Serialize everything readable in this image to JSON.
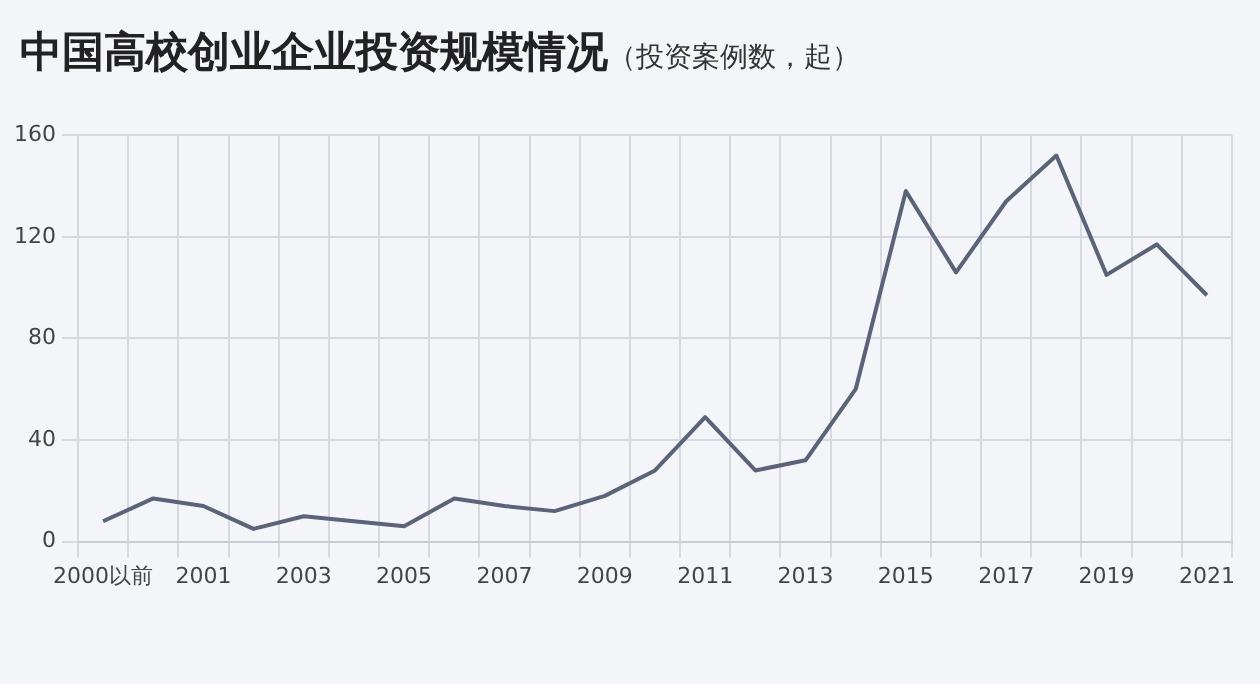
{
  "chart_data": {
    "type": "line",
    "title": "中国高校创业企业投资规模情况",
    "subtitle": "（投资案例数，起）",
    "categories": [
      "2000以前",
      null,
      "2001",
      null,
      "2003",
      null,
      "2005",
      null,
      "2007",
      null,
      "2009",
      null,
      "2011",
      null,
      "2013",
      null,
      "2015",
      null,
      "2017",
      null,
      "2019",
      null,
      "2021"
    ],
    "values": [
      8,
      17,
      14,
      5,
      10,
      8,
      6,
      17,
      14,
      12,
      18,
      28,
      49,
      28,
      32,
      60,
      138,
      106,
      134,
      152,
      105,
      117,
      97
    ],
    "color": "#5a6378",
    "ylim": [
      0,
      160
    ],
    "yticks": [
      0,
      40,
      80,
      120,
      160
    ],
    "grid": true,
    "legend": false,
    "marker": "none",
    "line_style": "solid"
  }
}
